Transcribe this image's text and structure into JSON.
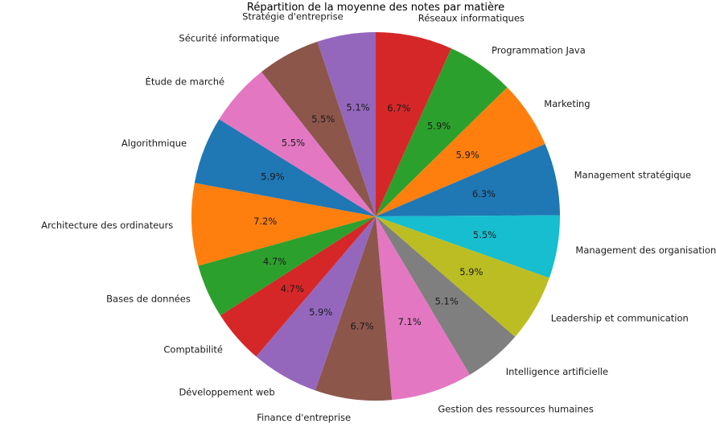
{
  "chart_data": {
    "type": "pie",
    "title": "Répartition de la moyenne des notes par matière",
    "start_angle_deg": 90,
    "direction": "clockwise",
    "slices": [
      {
        "label": "Réseaux informatiques",
        "pct": "6.7%",
        "value": 6.7,
        "color": "#d62728"
      },
      {
        "label": "Programmation Java",
        "pct": "5.9%",
        "value": 5.9,
        "color": "#2ca02c"
      },
      {
        "label": "Marketing",
        "pct": "5.9%",
        "value": 5.9,
        "color": "#ff7f0e"
      },
      {
        "label": "Management stratégique",
        "pct": "6.3%",
        "value": 6.3,
        "color": "#1f77b4"
      },
      {
        "label": "Management des organisations",
        "pct": "5.5%",
        "value": 5.5,
        "color": "#17becf"
      },
      {
        "label": "Leadership et communication",
        "pct": "5.9%",
        "value": 5.9,
        "color": "#bcbd22"
      },
      {
        "label": "Intelligence artificielle",
        "pct": "5.1%",
        "value": 5.1,
        "color": "#7f7f7f"
      },
      {
        "label": "Gestion des ressources humaines",
        "pct": "7.1%",
        "value": 7.1,
        "color": "#e377c2"
      },
      {
        "label": "Finance d'entreprise",
        "pct": "6.7%",
        "value": 6.7,
        "color": "#8c564b"
      },
      {
        "label": "Développement web",
        "pct": "5.9%",
        "value": 5.9,
        "color": "#9467bd"
      },
      {
        "label": "Comptabilité",
        "pct": "4.7%",
        "value": 4.7,
        "color": "#d62728"
      },
      {
        "label": "Bases de données",
        "pct": "4.7%",
        "value": 4.7,
        "color": "#2ca02c"
      },
      {
        "label": "Architecture des ordinateurs",
        "pct": "7.2%",
        "value": 7.2,
        "color": "#ff7f0e"
      },
      {
        "label": "Algorithmique",
        "pct": "5.9%",
        "value": 5.9,
        "color": "#1f77b4"
      },
      {
        "label": "Étude de marché",
        "pct": "5.5%",
        "value": 5.5,
        "color": "#e377c2"
      },
      {
        "label": "Sécurité informatique",
        "pct": "5.5%",
        "value": 5.5,
        "color": "#8c564b"
      },
      {
        "label": "Stratégie d'entreprise",
        "pct": "5.1%",
        "value": 5.1,
        "color": "#9467bd"
      }
    ]
  }
}
